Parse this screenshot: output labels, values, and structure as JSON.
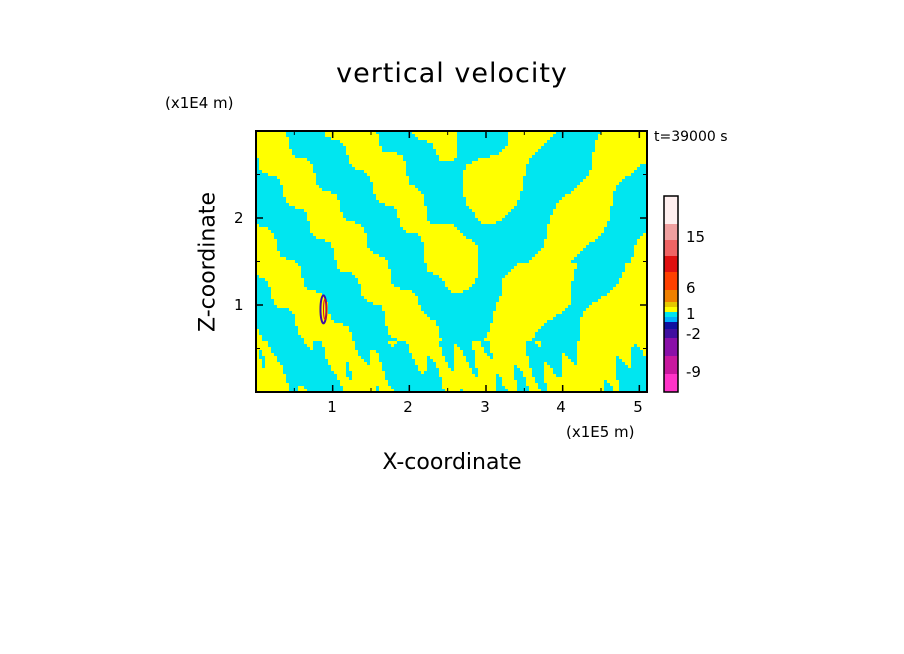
{
  "chart_data": {
    "type": "heatmap",
    "title": "vertical velocity",
    "time_label": "t=39000 s",
    "xlabel": "X-coordinate",
    "ylabel": "Z-coordinate",
    "x_unit": "(x1E5 m)",
    "y_unit": "(x1E4 m)",
    "xlim": [
      0,
      5.1
    ],
    "ylim": [
      0,
      3.0
    ],
    "x_ticks": [
      "1",
      "2",
      "3",
      "4",
      "5"
    ],
    "y_ticks": [
      "1",
      "2"
    ],
    "colorbar": {
      "levels": [
        -12,
        -9,
        -6,
        -4,
        -2,
        -1,
        0,
        1,
        2,
        4,
        6,
        9,
        12,
        15,
        18
      ],
      "colors": [
        "#ff33c8",
        "#c8189e",
        "#8a10a8",
        "#4010a0",
        "#1010a0",
        "#00b0ff",
        "#00e6f0",
        "#ffff00",
        "#e6c800",
        "#f08000",
        "#ff4000",
        "#e01010",
        "#f06464",
        "#f0a0a0",
        "#ffd2d2",
        "#fff0f0"
      ],
      "tick_labels": [
        "-9",
        "-2",
        "1",
        "6",
        "15"
      ],
      "tick_values": [
        -9,
        -2,
        1,
        6,
        15
      ]
    },
    "dominant_colors": {
      "positive": "#ffff00",
      "negative": "#00e6f0"
    }
  }
}
